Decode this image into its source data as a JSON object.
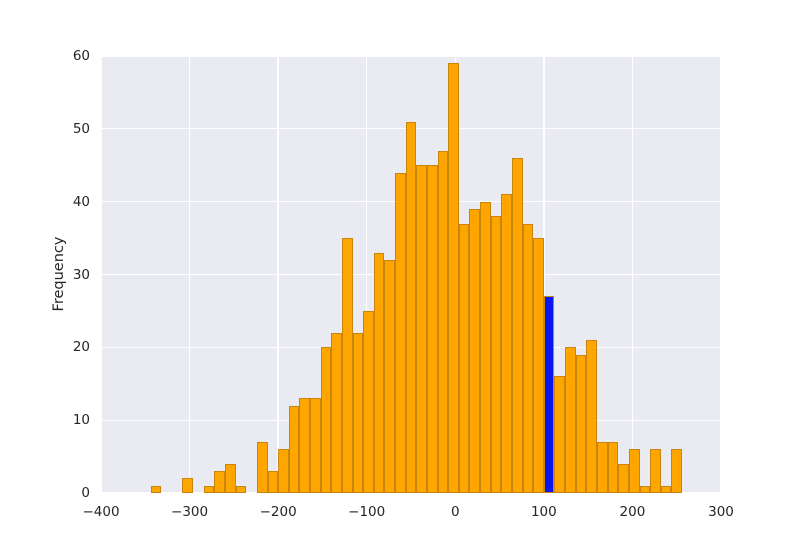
{
  "figure": {
    "background": "#ffffff",
    "plot_background": "#eaeaf2",
    "grid_color": "#ffffff",
    "text_color": "#262626"
  },
  "chart_data": {
    "type": "bar",
    "subtype": "histogram",
    "title": "",
    "xlabel": "",
    "ylabel": "Frequency",
    "xlim": [
      -400,
      300
    ],
    "ylim": [
      0,
      60
    ],
    "grid": true,
    "legend": false,
    "x_ticks": [
      {
        "label": "−400",
        "value": -400
      },
      {
        "label": "−300",
        "value": -300
      },
      {
        "label": "−200",
        "value": -200
      },
      {
        "label": "−100",
        "value": -100
      },
      {
        "label": "0",
        "value": 0
      },
      {
        "label": "100",
        "value": 100
      },
      {
        "label": "200",
        "value": 200
      },
      {
        "label": "300",
        "value": 300
      }
    ],
    "y_ticks": [
      {
        "label": "0",
        "value": 0
      },
      {
        "label": "10",
        "value": 10
      },
      {
        "label": "20",
        "value": 20
      },
      {
        "label": "30",
        "value": 30
      },
      {
        "label": "40",
        "value": 40
      },
      {
        "label": "50",
        "value": 50
      },
      {
        "label": "60",
        "value": 60
      }
    ],
    "bin_start": -344,
    "bin_width": 12,
    "values": [
      1,
      0,
      0,
      2,
      0,
      1,
      3,
      4,
      1,
      0,
      7,
      3,
      6,
      12,
      13,
      13,
      20,
      22,
      35,
      22,
      25,
      33,
      32,
      44,
      51,
      45,
      45,
      47,
      59,
      37,
      39,
      40,
      38,
      41,
      46,
      37,
      35,
      27,
      16,
      20,
      19,
      21,
      7,
      7,
      4,
      6,
      1,
      6,
      1,
      6
    ],
    "bar_color": "#ffa500",
    "bar_edge_color": "#c8860d",
    "highlight_index": 37,
    "highlight_color": "#0a16ee",
    "highlight_bin_range": [
      100,
      112
    ],
    "highlight_value": 27
  }
}
